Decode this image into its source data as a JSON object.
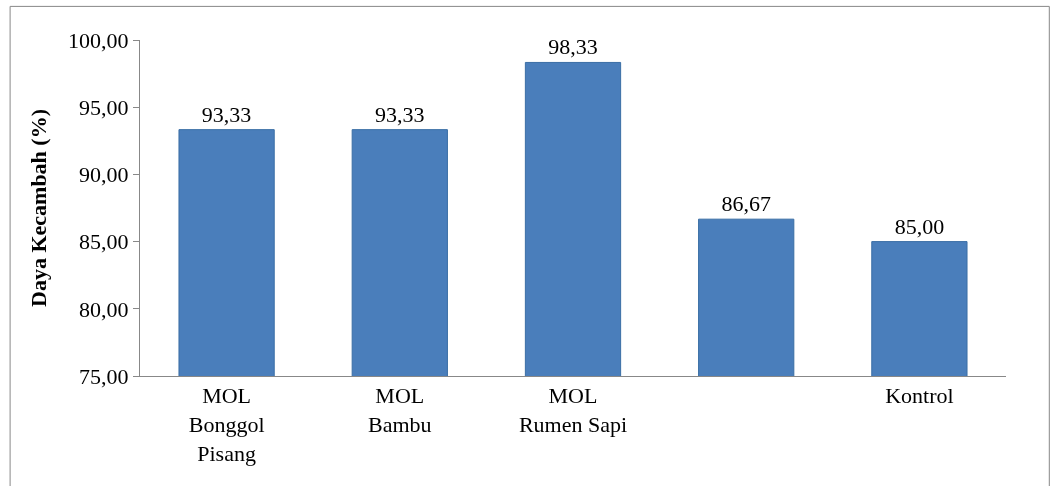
{
  "chart_data": {
    "type": "bar",
    "ylabel": "Daya Kecambah (%)",
    "categories": [
      "MOL\nBonggol\nPisang",
      "MOL\nBambu",
      "MOL\nRumen Sapi",
      null,
      "Kontrol"
    ],
    "values": [
      93.33,
      93.33,
      98.33,
      86.67,
      85.0
    ],
    "value_labels": [
      "93,33",
      "93,33",
      "98,33",
      "86,67",
      "85,00"
    ],
    "color": "#4a7ebb",
    "ylim": [
      75,
      100
    ],
    "yticks": [
      {
        "value": 75,
        "label": "75,00"
      },
      {
        "value": 80,
        "label": "80,00"
      },
      {
        "value": 85,
        "label": "85,00"
      },
      {
        "value": 90,
        "label": "90,00"
      },
      {
        "value": 95,
        "label": "95,00"
      },
      {
        "value": 100,
        "label": "100,00"
      }
    ],
    "legend": false
  }
}
